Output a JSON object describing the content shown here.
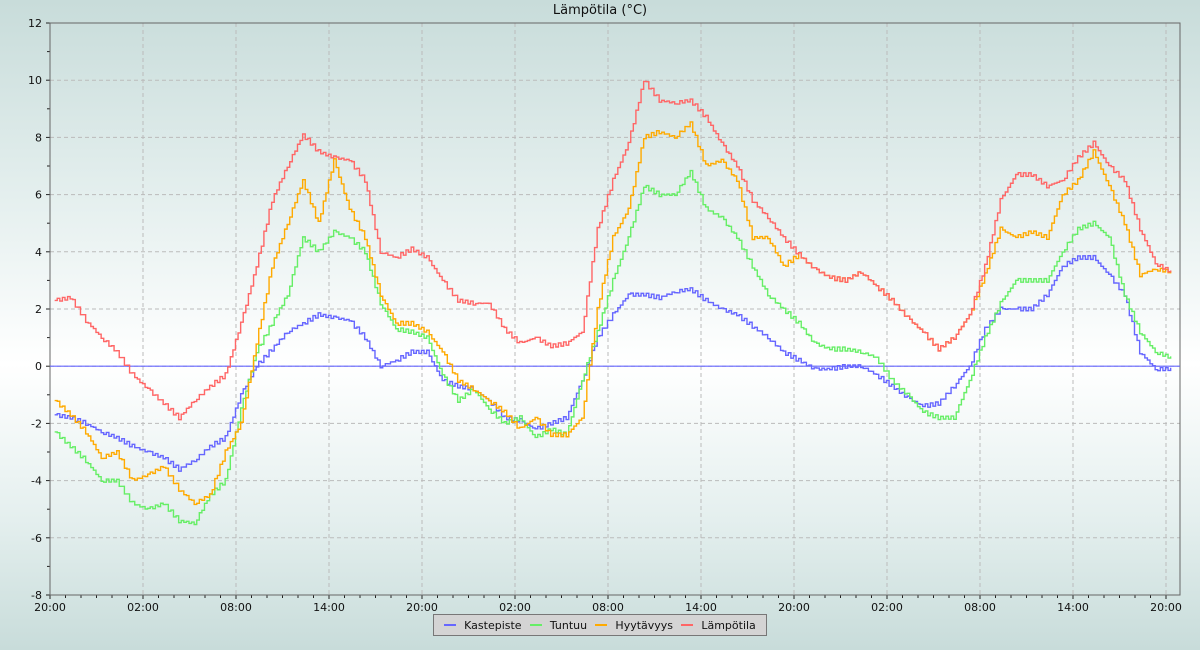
{
  "chart_data": {
    "type": "line",
    "title": "Lämpötila (°C)",
    "xlabel": "",
    "ylabel": "",
    "ylim": [
      -8,
      12
    ],
    "yticks": [
      -8,
      -6,
      -4,
      -2,
      0,
      2,
      4,
      6,
      8,
      10,
      12
    ],
    "xticks": [
      "20:00",
      "02:00",
      "08:00",
      "14:00",
      "20:00",
      "02:00",
      "08:00",
      "14:00",
      "20:00",
      "02:00",
      "08:00",
      "14:00",
      "20:00"
    ],
    "x_hours_from_start": [
      0,
      1,
      2,
      3,
      4,
      5,
      6,
      7,
      8,
      9,
      10,
      11,
      12,
      13,
      14,
      15,
      16,
      17,
      18,
      19,
      20,
      21,
      22,
      23,
      24,
      25,
      26,
      27,
      28,
      29,
      30,
      31,
      32,
      33,
      34,
      35,
      36,
      37,
      38,
      39,
      40,
      41,
      42,
      43,
      44,
      45,
      46,
      47,
      48,
      49,
      50,
      51,
      52,
      53,
      54,
      55,
      56,
      57,
      58,
      59,
      60,
      61,
      62,
      63,
      64,
      65,
      66,
      67,
      68,
      69,
      70,
      71,
      72
    ],
    "grid": true,
    "legend_position": "bottom",
    "zero_line_color": "#6666ff",
    "series": [
      {
        "name": "Kastepiste",
        "color": "#6666ff",
        "values": [
          -1.7,
          -1.8,
          -2.0,
          -2.3,
          -2.5,
          -2.8,
          -3.0,
          -3.2,
          -3.6,
          -3.3,
          -2.8,
          -2.5,
          -1.0,
          0.0,
          0.6,
          1.2,
          1.5,
          1.8,
          1.7,
          1.6,
          1.0,
          0.0,
          0.2,
          0.5,
          0.5,
          -0.5,
          -0.7,
          -0.8,
          -1.2,
          -1.8,
          -1.9,
          -2.2,
          -2.0,
          -1.8,
          -0.5,
          1.0,
          1.8,
          2.5,
          2.5,
          2.4,
          2.6,
          2.7,
          2.3,
          2.0,
          1.8,
          1.4,
          1.0,
          0.5,
          0.2,
          -0.1,
          -0.1,
          0.0,
          0.0,
          -0.3,
          -0.7,
          -1.1,
          -1.4,
          -1.3,
          -0.7,
          0.0,
          1.3,
          2.0,
          2.0,
          2.0,
          2.5,
          3.5,
          3.8,
          3.8,
          3.2,
          2.5,
          0.5,
          -0.1,
          -0.1
        ]
      },
      {
        "name": "Tuntuu",
        "color": "#66ee66",
        "values": [
          -2.3,
          -2.8,
          -3.3,
          -4.0,
          -4.0,
          -4.8,
          -5.0,
          -4.8,
          -5.4,
          -5.5,
          -4.5,
          -4.0,
          -1.5,
          0.5,
          1.5,
          2.5,
          4.5,
          4.0,
          4.7,
          4.5,
          4.0,
          2.2,
          1.3,
          1.2,
          1.0,
          -0.3,
          -1.2,
          -0.8,
          -1.5,
          -2.0,
          -1.8,
          -2.5,
          -2.2,
          -2.4,
          -0.5,
          1.2,
          3.0,
          4.5,
          6.3,
          6.0,
          6.0,
          6.8,
          5.5,
          5.2,
          4.5,
          3.5,
          2.5,
          2.0,
          1.5,
          0.8,
          0.6,
          0.6,
          0.5,
          0.3,
          -0.5,
          -1.0,
          -1.6,
          -1.8,
          -1.8,
          -0.5,
          1.0,
          2.2,
          3.0,
          3.0,
          3.0,
          4.0,
          4.8,
          5.0,
          4.5,
          2.5,
          1.2,
          0.5,
          0.3
        ]
      },
      {
        "name": "Hyytävyys",
        "color": "#ffaa00",
        "values": [
          -1.2,
          -1.7,
          -2.3,
          -3.2,
          -3.0,
          -4.0,
          -3.8,
          -3.5,
          -4.3,
          -4.8,
          -4.5,
          -3.0,
          -2.0,
          0.8,
          3.5,
          5.0,
          6.5,
          5.0,
          7.2,
          5.5,
          4.5,
          2.5,
          1.5,
          1.5,
          1.2,
          0.5,
          -0.5,
          -0.8,
          -1.2,
          -1.6,
          -2.2,
          -1.8,
          -2.4,
          -2.4,
          -1.8,
          2.0,
          4.5,
          5.5,
          8.0,
          8.2,
          8.0,
          8.5,
          7.0,
          7.2,
          6.5,
          4.5,
          4.5,
          3.5,
          3.9,
          3.4,
          3.1,
          3.0,
          3.3,
          2.8,
          2.3,
          1.7,
          1.2,
          0.6,
          1.0,
          1.8,
          3.2,
          4.8,
          4.5,
          4.7,
          4.5,
          6.0,
          6.5,
          7.5,
          6.3,
          5.0,
          3.2,
          3.4,
          3.3
        ]
      },
      {
        "name": "Lämpötila",
        "color": "#ff6666",
        "values": [
          2.3,
          2.4,
          1.6,
          1.0,
          0.5,
          -0.3,
          -0.8,
          -1.3,
          -1.8,
          -1.2,
          -0.7,
          -0.3,
          1.5,
          3.5,
          5.8,
          7.0,
          8.1,
          7.5,
          7.3,
          7.2,
          6.5,
          4.0,
          3.8,
          4.1,
          3.8,
          3.0,
          2.3,
          2.2,
          2.2,
          1.3,
          0.8,
          1.0,
          0.7,
          0.8,
          1.2,
          4.8,
          6.5,
          7.8,
          10.0,
          9.3,
          9.2,
          9.3,
          8.7,
          7.8,
          7.0,
          5.8,
          5.2,
          4.5,
          3.9,
          3.4,
          3.1,
          3.0,
          3.3,
          2.8,
          2.3,
          1.7,
          1.2,
          0.6,
          1.0,
          1.8,
          3.5,
          5.8,
          6.7,
          6.7,
          6.3,
          6.5,
          7.3,
          7.8,
          7.0,
          6.5,
          4.8,
          3.6,
          3.3
        ]
      }
    ]
  }
}
